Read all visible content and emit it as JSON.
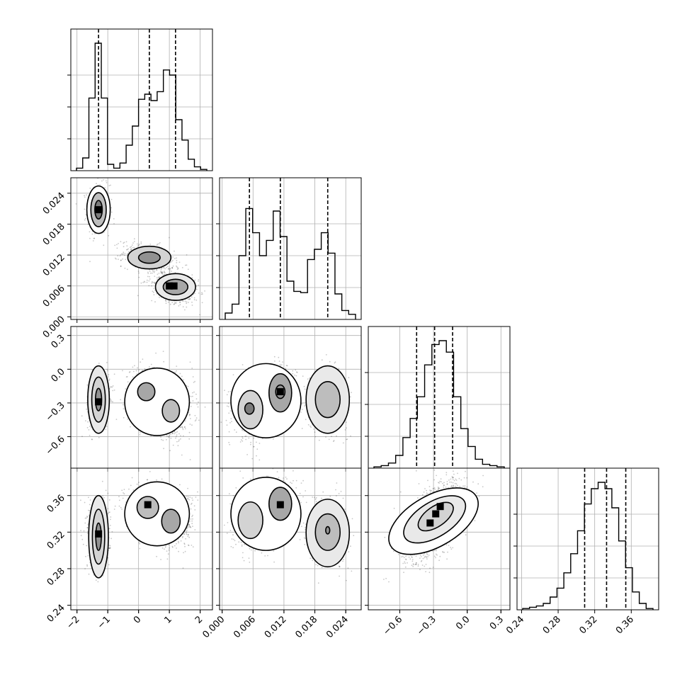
{
  "chart_data": {
    "type": "corner",
    "parameters": [
      {
        "range": [
          -2.2,
          2.4
        ],
        "ticks": [
          -2,
          -1,
          0,
          1,
          2
        ],
        "tick_labels": [
          "−2",
          "−1",
          "0",
          "1",
          "2"
        ],
        "quantiles": [
          -1.3,
          0.35,
          1.2
        ],
        "hist": [
          0.02,
          0.1,
          0.57,
          1.0,
          0.57,
          0.05,
          0.02,
          0.06,
          0.2,
          0.35,
          0.56,
          0.6,
          0.55,
          0.62,
          0.79,
          0.75,
          0.4,
          0.24,
          0.09,
          0.03,
          0.01
        ]
      },
      {
        "range": [
          -0.0005,
          0.027
        ],
        "ticks": [
          0.0,
          0.006,
          0.012,
          0.018,
          0.024
        ],
        "tick_labels": [
          "0.000",
          "0.006",
          "0.012",
          "0.018",
          "0.024"
        ],
        "quantiles": [
          0.0053,
          0.0113,
          0.0205
        ],
        "hist": [
          0.05,
          0.12,
          0.5,
          0.87,
          0.68,
          0.5,
          0.62,
          0.85,
          0.65,
          0.3,
          0.22,
          0.21,
          0.47,
          0.55,
          0.68,
          0.52,
          0.2,
          0.07,
          0.04
        ]
      },
      {
        "range": [
          -0.88,
          0.38
        ],
        "ticks": [
          -0.6,
          -0.3,
          0.0,
          0.3
        ],
        "tick_labels": [
          "−0.6",
          "−0.3",
          "0.0",
          "0.3"
        ],
        "quantiles": [
          -0.45,
          -0.29,
          -0.13
        ],
        "hist": [
          0.01,
          0.02,
          0.04,
          0.1,
          0.24,
          0.39,
          0.56,
          0.81,
          0.97,
          1.0,
          0.91,
          0.56,
          0.31,
          0.17,
          0.07,
          0.03,
          0.02,
          0.01
        ]
      },
      {
        "range": [
          0.235,
          0.39
        ],
        "ticks": [
          0.24,
          0.28,
          0.32,
          0.36
        ],
        "tick_labels": [
          "0.24",
          "0.28",
          "0.32",
          "0.36"
        ],
        "quantiles": [
          0.309,
          0.333,
          0.354
        ],
        "hist": [
          0.01,
          0.02,
          0.03,
          0.05,
          0.1,
          0.17,
          0.29,
          0.44,
          0.62,
          0.83,
          0.95,
          1.0,
          0.95,
          0.8,
          0.54,
          0.33,
          0.14,
          0.05,
          0.01
        ]
      }
    ],
    "pairs": [
      {
        "x": 0,
        "y": 1,
        "yticks": [
          0.0,
          0.006,
          0.012,
          0.018,
          0.024
        ],
        "ytick_labels": [
          "0.000",
          "0.006",
          "0.012",
          "0.018",
          "0.024"
        ],
        "clusters": [
          {
            "cx": -1.3,
            "cy": 0.0208,
            "sx": 0.18,
            "sy": 0.0024,
            "rho": 0.0,
            "n": 500
          },
          {
            "cx": 0.3,
            "cy": 0.0115,
            "sx": 0.42,
            "sy": 0.0014,
            "rho": -0.3,
            "n": 450
          },
          {
            "cx": 1.2,
            "cy": 0.0058,
            "sx": 0.38,
            "sy": 0.0016,
            "rho": -0.3,
            "n": 550
          }
        ],
        "contours": [
          {
            "cx": -1.3,
            "cy": 0.0208,
            "rx": 0.38,
            "ry": 0.0046,
            "rot": 0
          },
          {
            "cx": -1.3,
            "cy": 0.0208,
            "rx": 0.25,
            "ry": 0.0033,
            "rot": 0
          },
          {
            "cx": -1.3,
            "cy": 0.0208,
            "rx": 0.12,
            "ry": 0.0018,
            "rot": 0
          },
          {
            "cx": 0.35,
            "cy": 0.0115,
            "rx": 0.7,
            "ry": 0.0022,
            "rot": 0
          },
          {
            "cx": 0.35,
            "cy": 0.0115,
            "rx": 0.35,
            "ry": 0.0011,
            "rot": 0
          },
          {
            "cx": 1.2,
            "cy": 0.0058,
            "rx": 0.65,
            "ry": 0.0026,
            "rot": 0
          },
          {
            "cx": 1.2,
            "cy": 0.0058,
            "rx": 0.4,
            "ry": 0.0015,
            "rot": 0
          }
        ],
        "dark": [
          {
            "x": -1.3,
            "y": 0.0208
          },
          {
            "x": 1.0,
            "y": 0.006
          },
          {
            "x": 1.15,
            "y": 0.006
          }
        ]
      },
      {
        "x": 0,
        "y": 2,
        "yticks": [
          -0.6,
          -0.3,
          0.0,
          0.3
        ],
        "ytick_labels": [
          "−0.6",
          "−0.3",
          "0.0",
          "0.3"
        ],
        "clusters": [
          {
            "cx": -1.3,
            "cy": -0.28,
            "sx": 0.18,
            "sy": 0.12,
            "rho": 0.3,
            "n": 500
          },
          {
            "cx": 0.3,
            "cy": -0.22,
            "sx": 0.38,
            "sy": 0.13,
            "rho": 0.0,
            "n": 450
          },
          {
            "cx": 1.1,
            "cy": -0.36,
            "sx": 0.35,
            "sy": 0.13,
            "rho": 0.0,
            "n": 550
          }
        ],
        "contours": [
          {
            "cx": -1.3,
            "cy": -0.27,
            "rx": 0.35,
            "ry": 0.3,
            "rot": 0
          },
          {
            "cx": -1.3,
            "cy": -0.27,
            "rx": 0.22,
            "ry": 0.2,
            "rot": 0
          },
          {
            "cx": -1.3,
            "cy": -0.27,
            "rx": 0.1,
            "ry": 0.1,
            "rot": 0
          },
          {
            "cx": 0.6,
            "cy": -0.29,
            "rx": 1.05,
            "ry": 0.3,
            "rot": 0
          },
          {
            "cx": 0.25,
            "cy": -0.2,
            "rx": 0.28,
            "ry": 0.08,
            "rot": 0
          },
          {
            "cx": 1.05,
            "cy": -0.37,
            "rx": 0.28,
            "ry": 0.1,
            "rot": 0
          }
        ],
        "dark": [
          {
            "x": -1.3,
            "y": -0.29
          }
        ]
      },
      {
        "x": 1,
        "y": 2,
        "yticks": [
          -0.6,
          -0.3,
          0.0,
          0.3
        ],
        "ytick_labels": [
          "−0.6",
          "−0.3",
          "0.0",
          "0.3"
        ],
        "clusters": [
          {
            "cx": 0.0055,
            "cy": -0.35,
            "sx": 0.0017,
            "sy": 0.13,
            "rho": 0.0,
            "n": 500
          },
          {
            "cx": 0.0112,
            "cy": -0.22,
            "sx": 0.0016,
            "sy": 0.12,
            "rho": 0.0,
            "n": 450
          },
          {
            "cx": 0.0205,
            "cy": -0.27,
            "sx": 0.0019,
            "sy": 0.13,
            "rho": 0.0,
            "n": 550
          }
        ],
        "contours": [
          {
            "cx": 0.0085,
            "cy": -0.28,
            "rx": 0.0068,
            "ry": 0.33,
            "rot": 0
          },
          {
            "cx": 0.0055,
            "cy": -0.36,
            "rx": 0.0024,
            "ry": 0.17,
            "rot": 0
          },
          {
            "cx": 0.0113,
            "cy": -0.21,
            "rx": 0.0022,
            "ry": 0.17,
            "rot": 0
          },
          {
            "cx": 0.0053,
            "cy": -0.35,
            "rx": 0.0009,
            "ry": 0.05,
            "rot": 0
          },
          {
            "cx": 0.0113,
            "cy": -0.2,
            "rx": 0.0009,
            "ry": 0.06,
            "rot": 0
          },
          {
            "cx": 0.0205,
            "cy": -0.27,
            "rx": 0.0042,
            "ry": 0.3,
            "rot": 0
          },
          {
            "cx": 0.0205,
            "cy": -0.27,
            "rx": 0.0024,
            "ry": 0.16,
            "rot": 0
          }
        ],
        "dark": [
          {
            "x": 0.0113,
            "y": -0.2
          }
        ]
      },
      {
        "x": 0,
        "y": 3,
        "yticks": [
          0.24,
          0.28,
          0.32,
          0.36
        ],
        "ytick_labels": [
          "0.24",
          "0.28",
          "0.32",
          "0.36"
        ],
        "clusters": [
          {
            "cx": -1.3,
            "cy": 0.316,
            "sx": 0.18,
            "sy": 0.018,
            "rho": 0.0,
            "n": 500
          },
          {
            "cx": 0.3,
            "cy": 0.348,
            "sx": 0.38,
            "sy": 0.013,
            "rho": 0.0,
            "n": 450
          },
          {
            "cx": 1.1,
            "cy": 0.332,
            "sx": 0.35,
            "sy": 0.015,
            "rho": 0.0,
            "n": 550
          }
        ],
        "contours": [
          {
            "cx": -1.3,
            "cy": 0.315,
            "rx": 0.32,
            "ry": 0.045,
            "rot": 0
          },
          {
            "cx": -1.3,
            "cy": 0.315,
            "rx": 0.2,
            "ry": 0.03,
            "rot": 0
          },
          {
            "cx": -1.3,
            "cy": 0.315,
            "rx": 0.09,
            "ry": 0.015,
            "rot": 0
          },
          {
            "cx": 0.6,
            "cy": 0.34,
            "rx": 1.05,
            "ry": 0.035,
            "rot": 0
          },
          {
            "cx": 0.3,
            "cy": 0.347,
            "rx": 0.35,
            "ry": 0.012,
            "rot": 0
          },
          {
            "cx": 1.05,
            "cy": 0.332,
            "rx": 0.3,
            "ry": 0.013,
            "rot": 0
          }
        ],
        "dark": [
          {
            "x": -1.3,
            "y": 0.318
          },
          {
            "x": 0.3,
            "y": 0.35
          }
        ]
      },
      {
        "x": 1,
        "y": 3,
        "yticks": [
          0.24,
          0.28,
          0.32,
          0.36
        ],
        "ytick_labels": [
          "0.24",
          "0.28",
          "0.32",
          "0.36"
        ],
        "clusters": [
          {
            "cx": 0.0055,
            "cy": 0.333,
            "sx": 0.0017,
            "sy": 0.016,
            "rho": 0.0,
            "n": 500
          },
          {
            "cx": 0.0112,
            "cy": 0.351,
            "sx": 0.0016,
            "sy": 0.013,
            "rho": 0.0,
            "n": 450
          },
          {
            "cx": 0.0205,
            "cy": 0.32,
            "sx": 0.0019,
            "sy": 0.017,
            "rho": 0.0,
            "n": 550
          }
        ],
        "contours": [
          {
            "cx": 0.0085,
            "cy": 0.34,
            "rx": 0.0068,
            "ry": 0.04,
            "rot": 0
          },
          {
            "cx": 0.0055,
            "cy": 0.333,
            "rx": 0.0024,
            "ry": 0.02,
            "rot": 0
          },
          {
            "cx": 0.0113,
            "cy": 0.351,
            "rx": 0.0022,
            "ry": 0.018,
            "rot": 0
          },
          {
            "cx": 0.0205,
            "cy": 0.319,
            "rx": 0.0042,
            "ry": 0.037,
            "rot": 0
          },
          {
            "cx": 0.0205,
            "cy": 0.32,
            "rx": 0.0024,
            "ry": 0.02,
            "rot": 0
          },
          {
            "cx": 0.0205,
            "cy": 0.322,
            "rx": 0.0004,
            "ry": 0.004,
            "rot": 0
          }
        ],
        "dark": [
          {
            "x": 0.0113,
            "y": 0.35
          }
        ]
      },
      {
        "x": 2,
        "y": 3,
        "yticks": [
          0.24,
          0.28,
          0.32,
          0.36
        ],
        "ytick_labels": [
          "0.24",
          "0.28",
          "0.32",
          "0.36"
        ],
        "clusters": [
          {
            "cx": -0.29,
            "cy": 0.333,
            "sx": 0.14,
            "sy": 0.021,
            "rho": 0.55,
            "n": 1500
          }
        ],
        "contours": [
          {
            "cx": -0.3,
            "cy": 0.332,
            "rx": 0.44,
            "ry": 0.028,
            "rot": -30
          },
          {
            "cx": -0.29,
            "cy": 0.334,
            "rx": 0.31,
            "ry": 0.019,
            "rot": -32
          },
          {
            "cx": -0.28,
            "cy": 0.337,
            "rx": 0.18,
            "ry": 0.011,
            "rot": -35
          }
        ],
        "dark": [
          {
            "x": -0.33,
            "y": 0.33
          },
          {
            "x": -0.28,
            "y": 0.34
          },
          {
            "x": -0.24,
            "y": 0.348
          }
        ]
      }
    ]
  }
}
